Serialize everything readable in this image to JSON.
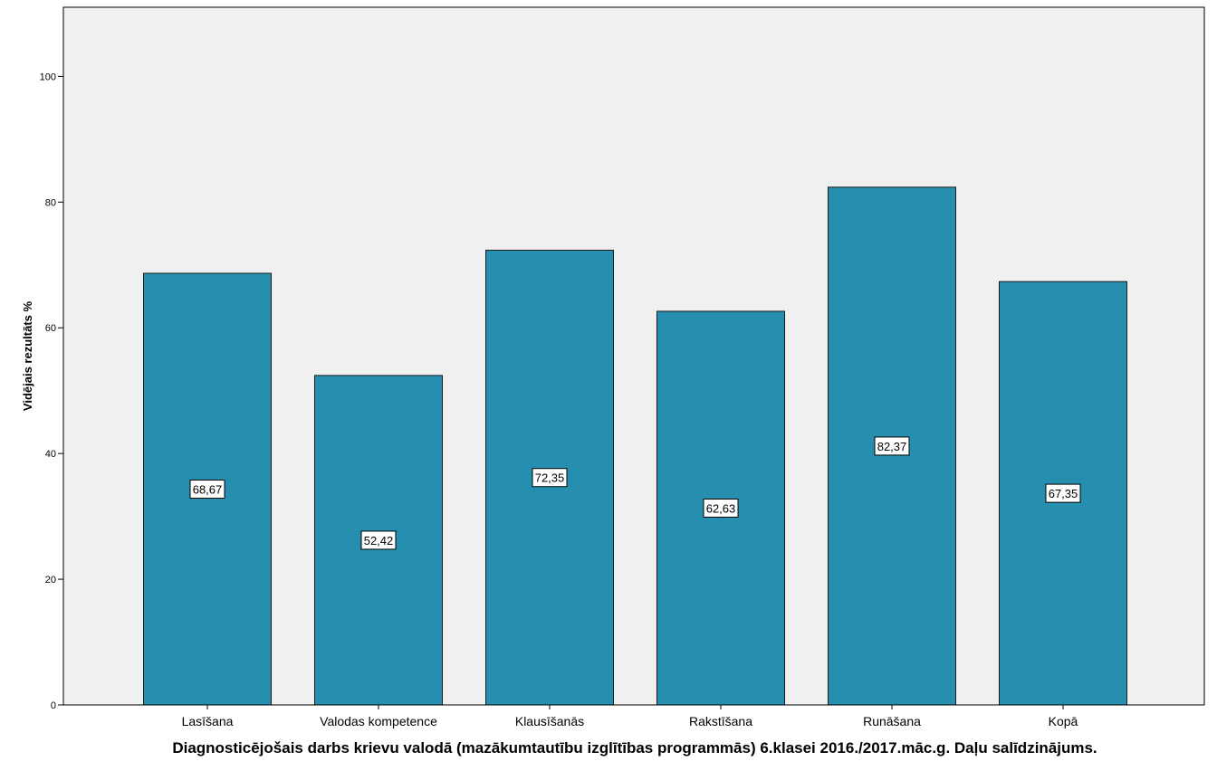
{
  "chart_data": {
    "type": "bar",
    "categories": [
      "Lasīšana",
      "Valodas kompetence",
      "Klausīšanās",
      "Rakstīšana",
      "Runāšana",
      "Kopā"
    ],
    "values": [
      68.67,
      52.42,
      72.35,
      62.63,
      82.37,
      67.35
    ],
    "value_labels": [
      "68,67",
      "52,42",
      "72,35",
      "62,63",
      "82,37",
      "67,35"
    ],
    "xlabel": "Diagnosticējošais darbs krievu valodā (mazākumtautību izglītības programmās) 6.klasei 2016./2017.māc.g. Daļu salīdzinājums.",
    "ylabel": "Vidējais rezultāts %",
    "ylim": [
      0,
      111
    ],
    "yticks": [
      0,
      20,
      40,
      60,
      80,
      100
    ],
    "grid": false,
    "bar_color": "#268eae",
    "plot_background": "#f0f0f0"
  }
}
